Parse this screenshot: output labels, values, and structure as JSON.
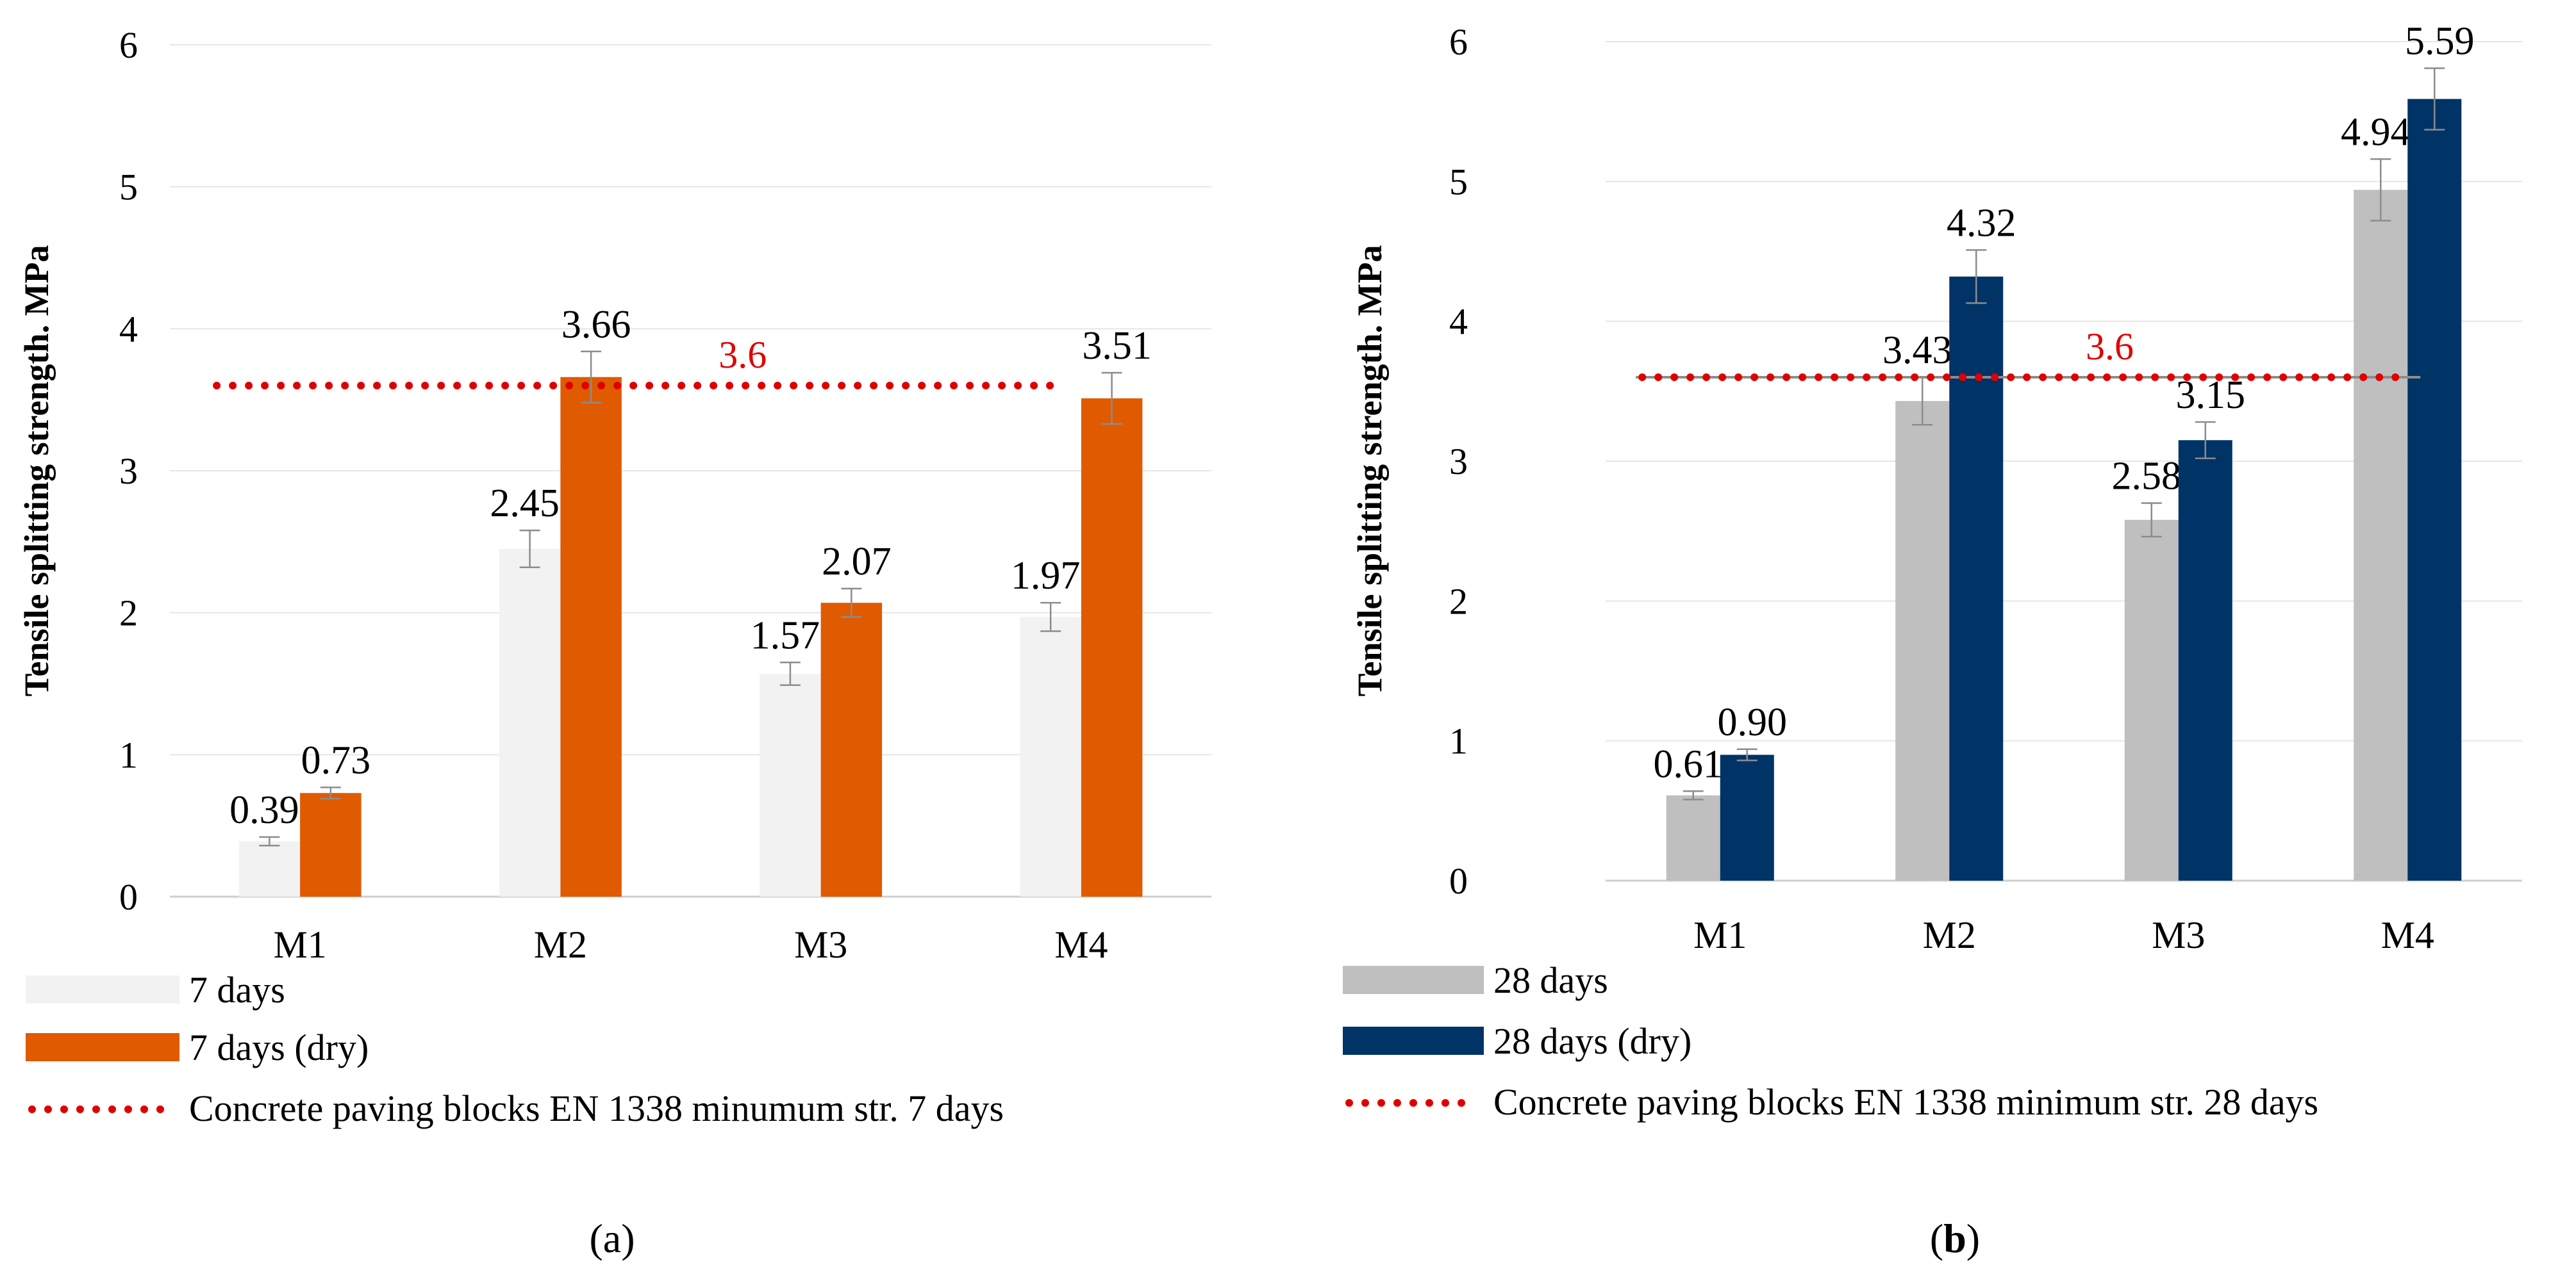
{
  "chart_data": [
    {
      "type": "bar",
      "panel_label": "a",
      "categories": [
        "M1",
        "M2",
        "M3",
        "M4"
      ],
      "ylabel": "Tensile splitting strength. MPa",
      "xlabel": "",
      "ylim": [
        0,
        6
      ],
      "yticks": [
        "0",
        "1",
        "2",
        "3",
        "4",
        "5",
        "6"
      ],
      "grid": true,
      "legend_position": "bottom-left",
      "series": [
        {
          "name": "7 days",
          "color": "#f2f2f2",
          "values": [
            0.39,
            2.45,
            1.57,
            1.97
          ],
          "labels": [
            "0.39",
            "2.45",
            "1.57",
            "1.97"
          ],
          "errors": [
            0.03,
            0.13,
            0.08,
            0.1
          ]
        },
        {
          "name": "7 days (dry)",
          "color": "#e05a00",
          "values": [
            0.73,
            3.66,
            2.07,
            3.51
          ],
          "labels": [
            "0.73",
            "3.66",
            "2.07",
            "3.51"
          ],
          "errors": [
            0.04,
            0.18,
            0.1,
            0.18
          ]
        }
      ],
      "threshold": {
        "name": "Concrete paving blocks EN 1338 minumum str. 7 days",
        "value": 3.6,
        "label": "3.6",
        "color": "#e00000"
      }
    },
    {
      "type": "bar",
      "panel_label": "b",
      "categories": [
        "M1",
        "M2",
        "M3",
        "M4"
      ],
      "ylabel": "Tensile splitting strength. MPa",
      "xlabel": "",
      "ylim": [
        0,
        6
      ],
      "yticks": [
        "0",
        "1",
        "2",
        "3",
        "4",
        "5",
        "6"
      ],
      "grid": true,
      "legend_position": "bottom-left",
      "series": [
        {
          "name": "28 days",
          "color": "#bfbfbf",
          "values": [
            0.61,
            3.43,
            2.58,
            4.94
          ],
          "labels": [
            "0.61",
            "3.43",
            "2.58",
            "4.94"
          ],
          "errors": [
            0.03,
            0.17,
            0.12,
            0.22
          ]
        },
        {
          "name": "28 days (dry)",
          "color": "#003366",
          "values": [
            0.9,
            4.32,
            3.15,
            5.59
          ],
          "labels": [
            "0.90",
            "4.32",
            "3.15",
            "5.59"
          ],
          "errors": [
            0.04,
            0.19,
            0.13,
            0.22
          ]
        }
      ],
      "threshold": {
        "name": "Concrete paving blocks EN 1338 minimum str. 28 days",
        "value": 3.6,
        "label": "3.6",
        "color": "#e00000"
      }
    }
  ]
}
